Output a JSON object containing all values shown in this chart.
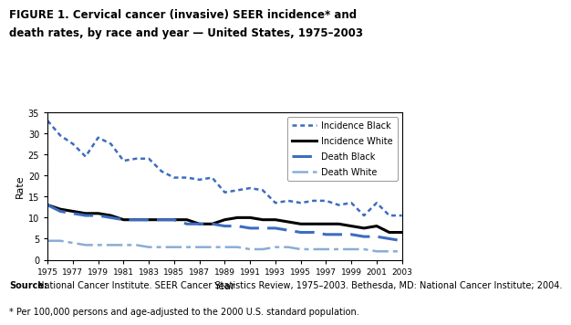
{
  "years": [
    1975,
    1976,
    1977,
    1978,
    1979,
    1980,
    1981,
    1982,
    1983,
    1984,
    1985,
    1986,
    1987,
    1988,
    1989,
    1990,
    1991,
    1992,
    1993,
    1994,
    1995,
    1996,
    1997,
    1998,
    1999,
    2000,
    2001,
    2002,
    2003
  ],
  "incidence_black": [
    33.0,
    29.5,
    27.5,
    24.5,
    29.0,
    27.5,
    23.5,
    24.0,
    24.0,
    21.0,
    19.5,
    19.5,
    19.0,
    19.5,
    16.0,
    16.5,
    17.0,
    16.5,
    13.5,
    14.0,
    13.5,
    14.0,
    14.0,
    13.0,
    13.5,
    10.5,
    13.5,
    10.5,
    10.5
  ],
  "incidence_white": [
    13.0,
    12.0,
    11.5,
    11.0,
    11.0,
    10.5,
    9.5,
    9.5,
    9.5,
    9.5,
    9.5,
    9.5,
    8.5,
    8.5,
    9.5,
    10.0,
    10.0,
    9.5,
    9.5,
    9.0,
    8.5,
    8.5,
    8.5,
    8.5,
    8.0,
    7.5,
    8.0,
    6.5,
    6.5
  ],
  "death_black": [
    13.0,
    11.5,
    11.0,
    10.5,
    10.5,
    10.0,
    9.5,
    9.5,
    9.5,
    9.5,
    9.5,
    8.5,
    8.5,
    8.5,
    8.0,
    8.0,
    7.5,
    7.5,
    7.5,
    7.0,
    6.5,
    6.5,
    6.0,
    6.0,
    6.0,
    5.5,
    5.5,
    5.0,
    4.5
  ],
  "death_white": [
    4.5,
    4.5,
    4.0,
    3.5,
    3.5,
    3.5,
    3.5,
    3.5,
    3.0,
    3.0,
    3.0,
    3.0,
    3.0,
    3.0,
    3.0,
    3.0,
    2.5,
    2.5,
    3.0,
    3.0,
    2.5,
    2.5,
    2.5,
    2.5,
    2.5,
    2.5,
    2.0,
    2.0,
    2.0
  ],
  "title_line1": "FIGURE 1. Cervical cancer (invasive) SEER incidence* and",
  "title_line2": "death rates, by race and year — United States, 1975–2003",
  "xlabel": "Year",
  "ylabel": "Rate",
  "ylim": [
    0,
    35
  ],
  "yticks": [
    0,
    5,
    10,
    15,
    20,
    25,
    30,
    35
  ],
  "xtick_years": [
    1975,
    1977,
    1979,
    1981,
    1983,
    1985,
    1987,
    1989,
    1991,
    1993,
    1995,
    1997,
    1999,
    2001,
    2003
  ],
  "legend_labels": [
    "Incidence Black",
    "Incidence White",
    "Death Black",
    "Death White"
  ],
  "source_bold": "Source:",
  "source_rest": " National Cancer Institute. SEER Cancer Statistics Review, 1975–2003. Bethesda, MD: National Cancer Institute; 2004.",
  "source_footnote": "* Per 100,000 persons and age-adjusted to the 2000 U.S. standard population.",
  "color_blue": "#3C6DBF",
  "color_black": "#000000",
  "color_light_blue": "#8AADD4"
}
